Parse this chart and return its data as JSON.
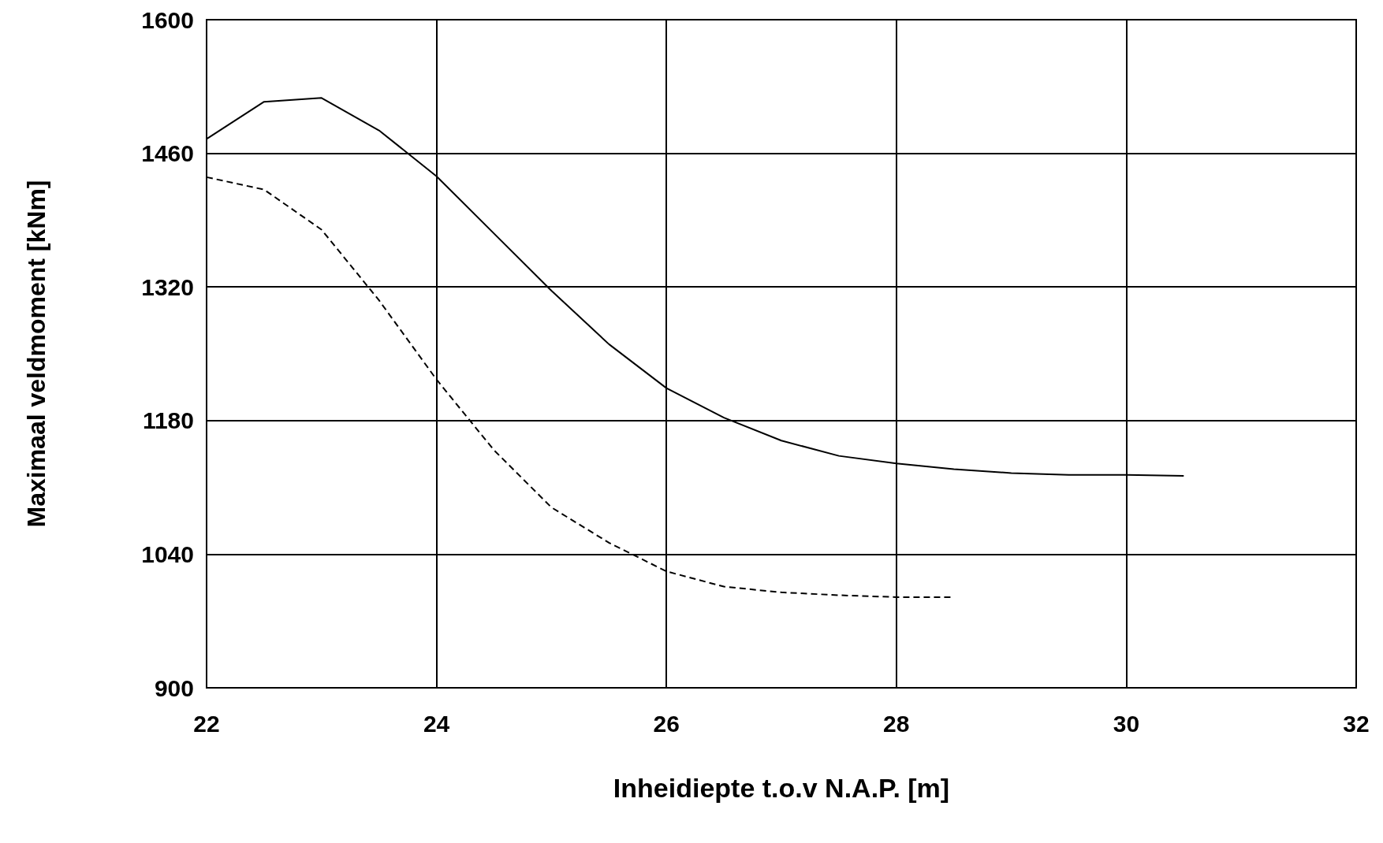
{
  "chart_data": {
    "type": "line",
    "xlabel": "Inheidiepte t.o.v N.A.P. [m]",
    "ylabel": "Maximaal veldmoment [kNm]",
    "xlim": [
      22,
      32
    ],
    "xticks": [
      22,
      24,
      26,
      28,
      30,
      32
    ],
    "ylim": [
      900,
      1600
    ],
    "yticks": [
      900,
      1040,
      1180,
      1320,
      1460,
      1600
    ],
    "grid": true,
    "marker": "none",
    "series": [
      {
        "color": "#000000",
        "line_style": "solid",
        "x": [
          22,
          22.5,
          23,
          23.5,
          24,
          24.5,
          25,
          25.5,
          26,
          26.5,
          27,
          27.5,
          28,
          28.5,
          29,
          29.5,
          30,
          30.5
        ],
        "values": [
          1475,
          1514,
          1518,
          1484,
          1436,
          1376,
          1316,
          1260,
          1214,
          1183,
          1159,
          1143,
          1135,
          1129,
          1125,
          1123,
          1123,
          1122
        ]
      },
      {
        "color": "#000000",
        "line_style": "dashed",
        "x": [
          22,
          22.5,
          23,
          23.5,
          24,
          24.5,
          25,
          25.5,
          26,
          26.5,
          27,
          27.5,
          28,
          28.5
        ],
        "values": [
          1435,
          1422,
          1380,
          1306,
          1223,
          1149,
          1089,
          1052,
          1022,
          1006,
          1000,
          997,
          995,
          995
        ]
      }
    ]
  }
}
